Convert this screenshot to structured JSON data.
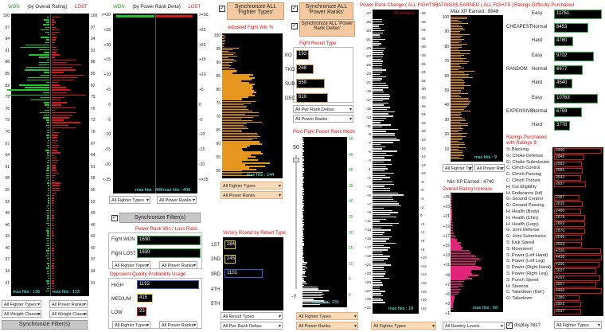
{
  "p1": {
    "title_won": "WON",
    "title_mid": "(by Overall Rating)",
    "title_lost": "LOST",
    "scale": [
      "100",
      "97",
      "94",
      "91",
      "88",
      "85",
      "82",
      "79",
      "76",
      "73",
      "70",
      "67",
      "64",
      "61",
      "58",
      "55",
      "52",
      "49",
      "46",
      "43",
      "40",
      "37",
      "34",
      "31"
    ],
    "maxhits_left": "max hits : 136",
    "maxhits_right": "max hits : 113",
    "filter1": "All Fighter Types",
    "filter2": "All Power Ranks",
    "filter3": "All Weight Classes",
    "filter4": "All Weight Classes",
    "sync_btn": "Synchronize Filter(s)"
  },
  "p2": {
    "title_won": "WON",
    "title_mid": "(by Power Rank Delta)",
    "title_lost": "LOST",
    "scale": [
      ">=30",
      "+25",
      "+20",
      "+15",
      "+10",
      "+5",
      "0",
      "-5",
      "-10",
      "-15",
      "-20",
      "<-25"
    ],
    "scale_right": [
      ">=30",
      "+25",
      "+20",
      "+15",
      "+10",
      "+5",
      "0",
      "-5",
      "-10",
      "-15",
      "-20",
      "<=25"
    ],
    "maxhits_left": "max hits : 408",
    "maxhits_right": "max hits : 408",
    "filter1": "All Fighter Types",
    "filter2": "All Power Ranks",
    "sync_btn": "Synchronize Filter(s)"
  },
  "sync_fighter": "Synchronize ALL 'Fighter Types'",
  "sync_power": "Synchronize ALL 'Power Ranks'",
  "sync_delta": "Synchronize ALL 'Power Rank Deltas'",
  "wl": {
    "title": "Power Rank Win / Loss Ratio",
    "won_label": "Fight WON",
    "won_val": "1630",
    "lost_label": "Fight LOST",
    "lost_val": "1630",
    "filter1": "All Fighter Types",
    "filter2": "All Power Ranks"
  },
  "opp": {
    "title": "Opponent Quality Probability Usage",
    "rows": [
      {
        "label": "HIGH",
        "val": "1192"
      },
      {
        "label": "MEDIUM",
        "val": "415"
      },
      {
        "label": "LOW",
        "val": "23"
      }
    ],
    "filter1": "All Fighter Types",
    "filter2": "All Power Ranks"
  },
  "afw": {
    "title": "Adjusted Fight Win %",
    "scale": [
      "100",
      "95",
      "90",
      "85",
      "80",
      "75",
      "70",
      "65",
      "60",
      "55",
      "50"
    ],
    "maxhits": "max hits : 144",
    "filter1": "All Fighter Types",
    "filter2": "All Power Ranks"
  },
  "vr": {
    "title": "Victory Round  by Result Type",
    "rows": [
      {
        "label": "1ST",
        "val": "284"
      },
      {
        "label": "2ND",
        "val": "245"
      },
      {
        "label": "3RD",
        "val": "1101"
      },
      {
        "label": "4TH",
        "val": ""
      },
      {
        "label": "5TH",
        "val": ""
      }
    ],
    "filter1": "All Result Types",
    "filter2": "All Pwr Rank Deltas"
  },
  "frt": {
    "title": "Fight Result Type",
    "rows": [
      {
        "label": "KO",
        "val": "193"
      },
      {
        "label": "TKO",
        "val": "268"
      },
      {
        "label": "SUB",
        "val": "559"
      },
      {
        "label": "DEC",
        "val": "610"
      }
    ],
    "filter1": "All Pwr Rank Deltas",
    "filter2": "All Power Ranks"
  },
  "pf": {
    "title": "Post Fight Power Rank Mods",
    "slider_top": "50",
    "slider_bottom": "-7",
    "scale": [
      "50",
      "45",
      "40",
      "35",
      "30",
      "25",
      "20",
      "15",
      "10",
      "5",
      "0"
    ],
    "maxhits": "max hits : 331",
    "filter1": "All Fighter Types",
    "filter2": "All Power Ranks"
  },
  "prc": {
    "title": "Power Rank Change ( ALL FIGHTS )",
    "merged": "32 merged",
    "scale_left": [
      "-37",
      "-35",
      "-33",
      "-31",
      "-29",
      "-27",
      "-25",
      "-23",
      "-21",
      "-19",
      "-17",
      "-15",
      "-13",
      "-11",
      "-9",
      "-7",
      "-5",
      "-3",
      "-1",
      "+1",
      "+3",
      "+5",
      "+7",
      "+9",
      "+11",
      "+13",
      "+15",
      "+17",
      "+19",
      "+21",
      "+23",
      "+25",
      "+27",
      "+29",
      "+31"
    ],
    "scale_right": [
      "-48",
      "-46",
      "-44",
      "-42",
      "-40",
      "-38",
      "-36",
      "-34",
      "-32",
      "-30",
      "-28",
      "-26",
      "-24",
      "-22",
      "-20",
      "-18",
      "-16",
      "-14",
      "-12",
      "-10",
      "-8",
      "-6",
      "-4",
      "-2",
      "0",
      "+2",
      "+4",
      "+6",
      "+8",
      "+10",
      "+12",
      "+14",
      "+16",
      "+18",
      "+20",
      "+22"
    ],
    "maxhits": "max hits : 18",
    "filter1": "All Fighter Types"
  },
  "xp": {
    "title": "RATINGS$ EARNED ( ALL FIGHTS )",
    "max_label": "Max XP Earned : 8948",
    "scale": [
      "100",
      "90",
      "80",
      "70",
      "60",
      "50",
      "40",
      "30",
      "20",
      "10"
    ],
    "maxhits": "max hits : 9",
    "filter1": "All Fighter Types",
    "filter2": "All Power Ranks",
    "min_label": "Min XP Earned : 4740"
  },
  "ori": {
    "title": "Overall Rating Increase",
    "scale": [
      "+25",
      "+23",
      "+21",
      "+19",
      "+17",
      "+15",
      "+13",
      "+11",
      "+9",
      "+7",
      "+5",
      "+3",
      "+1"
    ],
    "maxhits": "max hits : 58",
    "filter1": "All Destiny Levels"
  },
  "rdp": {
    "title": "Ratings Difficulty Purchased",
    "groups": [
      {
        "name": "CHEAPEST",
        "rows": [
          {
            "label": "Easy",
            "val": "11751"
          },
          {
            "label": "Normal",
            "val": "8453"
          },
          {
            "label": "Hard",
            "val": "4780"
          }
        ]
      },
      {
        "name": "RANDOM",
        "rows": [
          {
            "label": "Easy",
            "val": "9702"
          },
          {
            "label": "Normal",
            "val": "6977"
          },
          {
            "label": "Hard",
            "val": "4540"
          }
        ]
      },
      {
        "name": "EXPENSIVE",
        "rows": [
          {
            "label": "Easy",
            "val": "10763"
          },
          {
            "label": "Normal",
            "val": "6759"
          },
          {
            "label": "Hard",
            "val": "3778"
          }
        ]
      }
    ]
  },
  "rp": {
    "title1": "Ratings Purchased",
    "title2": "with Ratings $",
    "rows": [
      {
        "label": "S: Blocking",
        "val": "4440"
      },
      {
        "label": "G: Choke Defense",
        "val": "2845"
      },
      {
        "label": "G: Choke Submission",
        "val": "2583"
      },
      {
        "label": "C: Clinch Control",
        "val": "2685"
      },
      {
        "label": "C: Clinch Passing",
        "val": "2543"
      },
      {
        "label": "C: Clinch Throws",
        "val": "2937"
      },
      {
        "label": "H: Cut Eligiblity",
        "val": ""
      },
      {
        "label": "H: Endurance (luf)",
        "val": "2387"
      },
      {
        "label": "G: Ground Control",
        "val": "2635"
      },
      {
        "label": "G: Ground Passing",
        "val": "2486"
      },
      {
        "label": "H: Health (Body)",
        "val": "2879"
      },
      {
        "label": "H: Health (Chin)",
        "val": "2869"
      },
      {
        "label": "H: Health (Legs)",
        "val": "2870"
      },
      {
        "label": "G: Joint Defense",
        "val": "2596"
      },
      {
        "label": "G: Joint Submission",
        "val": "2563"
      },
      {
        "label": "S: Kick Speed",
        "val": "4336"
      },
      {
        "label": "S: Movement",
        "val": "4438"
      },
      {
        "label": "S: Power (Left Hand)",
        "val": "4256"
      },
      {
        "label": "S: Power (Left Leg)",
        "val": "3937"
      },
      {
        "label": "S: Power (Right Hand)",
        "val": "4262"
      },
      {
        "label": "S: Power (Right Leg)",
        "val": "3927"
      },
      {
        "label": "S: Punch Speed",
        "val": "4446"
      },
      {
        "label": "H: Stamina",
        "val": "2380"
      },
      {
        "label": "C: Takedown (Def.)",
        "val": "2502"
      },
      {
        "label": "G: Takedown",
        "val": "2537"
      }
    ],
    "display_label": "display hits?",
    "filter1": "All Fighter Types"
  },
  "colors": {
    "green": "#22c22a",
    "red": "#d41818",
    "orange": "#e6961e",
    "white": "#e6e6e6",
    "magenta": "#e0247a",
    "lime": "#c8e020",
    "box_yellow": "#e0d020",
    "box_blue": "#3a5cd8",
    "box_red": "#c82828",
    "box_green": "#2fb54a",
    "box_peach": "#d89a60"
  }
}
